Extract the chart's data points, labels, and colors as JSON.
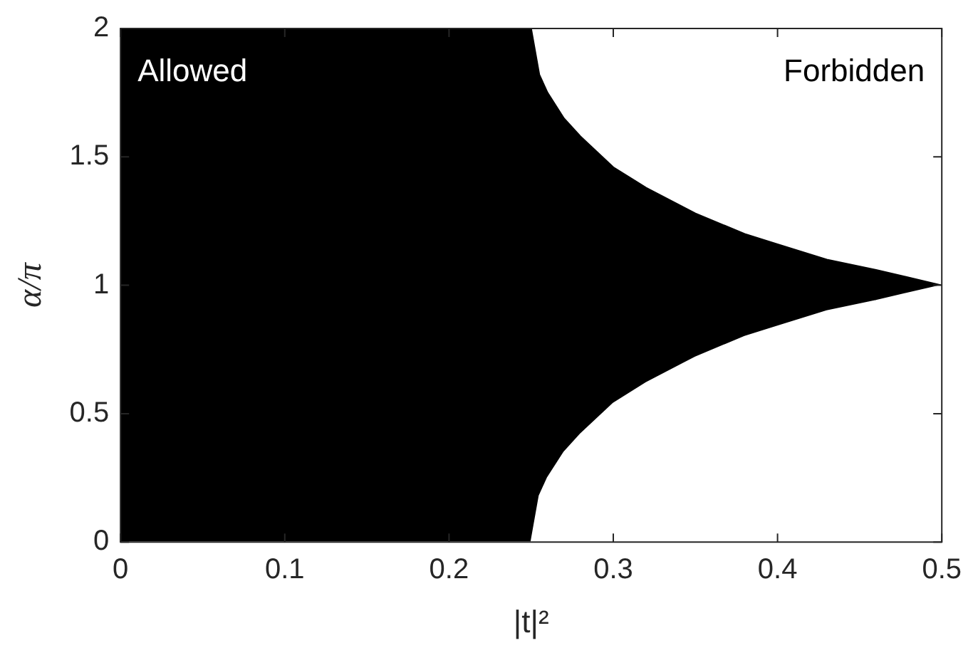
{
  "chart_data": {
    "type": "area",
    "xlabel": "|t|²",
    "ylabel": "α/π",
    "x": [
      0,
      0.25,
      0.255,
      0.26,
      0.27,
      0.28,
      0.3,
      0.32,
      0.35,
      0.38,
      0.4,
      0.43,
      0.46,
      0.5
    ],
    "series": [
      {
        "color": "#000000",
        "values": [
          2,
          2,
          1.82,
          1.75,
          1.65,
          1.58,
          1.46,
          1.38,
          1.28,
          1.2,
          1.16,
          1.1,
          1.06,
          1
        ]
      },
      {
        "color": "#ffffff",
        "values": [
          0,
          0,
          0.18,
          0.25,
          0.35,
          0.42,
          0.54,
          0.62,
          0.72,
          0.8,
          0.84,
          0.9,
          0.94,
          1
        ]
      }
    ],
    "xlim": [
      0,
      0.5
    ],
    "xticks": [
      0,
      0.1,
      0.2,
      0.3,
      0.4,
      0.5
    ],
    "ylim": [
      0,
      2
    ],
    "yticks": [
      0,
      0.5,
      1,
      1.5,
      2
    ],
    "annotations": [
      "Allowed",
      "Forbidden"
    ],
    "grid": false,
    "legend": false
  }
}
